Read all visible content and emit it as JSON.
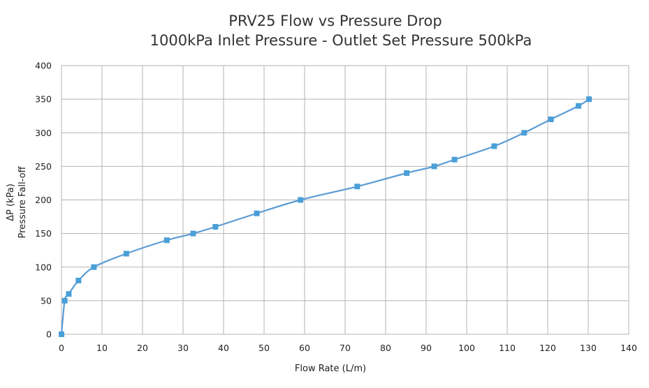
{
  "chart_data": {
    "type": "line",
    "title": "PRV25 Flow vs Pressure Drop",
    "subtitle": "1000kPa Inlet Pressure - Outlet Set Pressure 500kPa",
    "xlabel": "Flow Rate (L/m)",
    "ylabel_line1": "ΔP (kPa)",
    "ylabel_line2": "Pressure Fall-off",
    "xlim": [
      0,
      140
    ],
    "ylim": [
      0,
      400
    ],
    "x_ticks": [
      0,
      10,
      20,
      30,
      40,
      50,
      60,
      70,
      80,
      90,
      100,
      110,
      120,
      130,
      140
    ],
    "y_ticks": [
      0,
      50,
      100,
      150,
      200,
      250,
      300,
      350,
      400
    ],
    "grid": true,
    "series": [
      {
        "name": "PRV25",
        "color": "#5a9bd4",
        "marker_color": "#4a9fd8",
        "points": [
          {
            "x": 0,
            "y": 0
          },
          {
            "x": 0.8,
            "y": 50
          },
          {
            "x": 1.8,
            "y": 60
          },
          {
            "x": 4.2,
            "y": 80
          },
          {
            "x": 8,
            "y": 100
          },
          {
            "x": 16,
            "y": 120
          },
          {
            "x": 26,
            "y": 140
          },
          {
            "x": 32.5,
            "y": 150
          },
          {
            "x": 38,
            "y": 160
          },
          {
            "x": 48.2,
            "y": 180
          },
          {
            "x": 59,
            "y": 200
          },
          {
            "x": 73,
            "y": 220
          },
          {
            "x": 85.2,
            "y": 240
          },
          {
            "x": 92,
            "y": 250
          },
          {
            "x": 97,
            "y": 260
          },
          {
            "x": 106.8,
            "y": 280
          },
          {
            "x": 114.2,
            "y": 300
          },
          {
            "x": 120.8,
            "y": 320
          },
          {
            "x": 127.6,
            "y": 340
          },
          {
            "x": 130.2,
            "y": 350
          }
        ]
      }
    ]
  }
}
